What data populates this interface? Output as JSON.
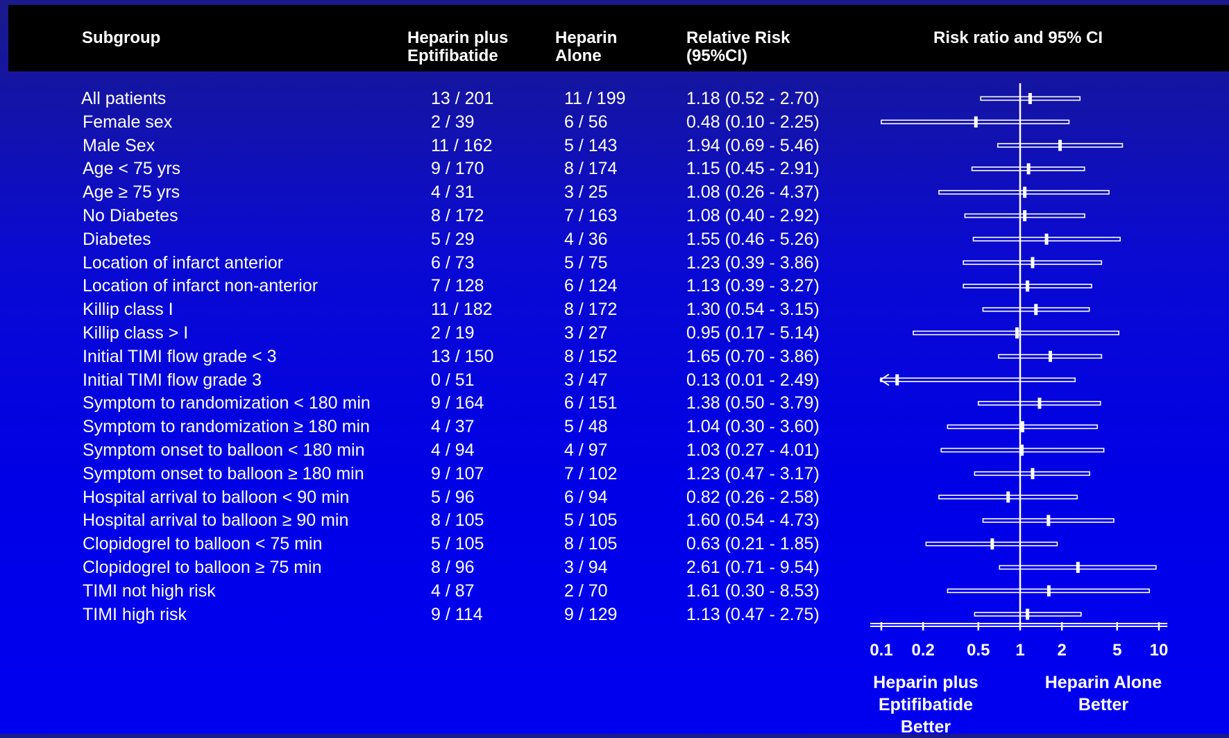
{
  "header": {
    "subgroup": "Subgroup",
    "col_a": "Heparin plus\nEptifibatide",
    "col_b": "Heparin\n Alone",
    "col_rr": "Relative Risk\n  (95%CI)",
    "col_plot": "Risk ratio and 95% CI"
  },
  "rows": [
    {
      "label": "All patients",
      "a": "13 / 201",
      "b": "11 / 199",
      "rr": "1.18 (0.52 - 2.70)"
    },
    {
      "label": "Female sex",
      "a": "2 / 39",
      "b": "6 / 56",
      "rr": "0.48 (0.10 - 2.25)"
    },
    {
      "label": "Male Sex",
      "a": "11 / 162",
      "b": "5 / 143",
      "rr": "1.94 (0.69 - 5.46)"
    },
    {
      "label": "Age < 75 yrs",
      "a": "9 / 170",
      "b": "8 / 174",
      "rr": "1.15 (0.45 - 2.91)"
    },
    {
      "label": "Age ≥ 75 yrs",
      "a": "4 / 31",
      "b": "3 / 25",
      "rr": "1.08 (0.26 - 4.37)"
    },
    {
      "label": "No Diabetes",
      "a": "8 / 172",
      "b": "7 / 163",
      "rr": "1.08 (0.40 - 2.92)"
    },
    {
      "label": "Diabetes",
      "a": "5 / 29",
      "b": "4 / 36",
      "rr": "1.55 (0.46 - 5.26)"
    },
    {
      "label": "Location of infarct anterior",
      "a": "6 / 73",
      "b": "5 / 75",
      "rr": "1.23 (0.39 - 3.86)"
    },
    {
      "label": "Location of infarct non-anterior",
      "a": "7 / 128",
      "b": "6 / 124",
      "rr": "1.13 (0.39 - 3.27)"
    },
    {
      "label": "Killip class I",
      "a": "11 / 182",
      "b": "8 / 172",
      "rr": "1.30 (0.54 - 3.15)"
    },
    {
      "label": "Killip class > I",
      "a": "2 / 19",
      "b": "3 / 27",
      "rr": "0.95 (0.17 - 5.14)"
    },
    {
      "label": "Initial TIMI flow grade < 3",
      "a": "13 / 150",
      "b": "8 / 152",
      "rr": "1.65 (0.70 - 3.86)"
    },
    {
      "label": "Initial TIMI flow grade 3",
      "a": "0 / 51",
      "b": "3 / 47",
      "rr": "0.13 (0.01 - 2.49)"
    },
    {
      "label": "Symptom to randomization < 180 min",
      "a": "9 / 164",
      "b": "6 / 151",
      "rr": "1.38 (0.50 - 3.79)"
    },
    {
      "label": "Symptom to randomization ≥ 180 min",
      "a": "4 / 37",
      "b": "5 / 48",
      "rr": "1.04 (0.30 - 3.60)"
    },
    {
      "label": "Symptom onset to balloon < 180 min",
      "a": "4 / 94",
      "b": "4 / 97",
      "rr": "1.03 (0.27 - 4.01)"
    },
    {
      "label": "Symptom onset to balloon ≥ 180 min",
      "a": "9 / 107",
      "b": "7 / 102",
      "rr": "1.23 (0.47 - 3.17)"
    },
    {
      "label": "Hospital arrival to balloon < 90 min",
      "a": "5 / 96",
      "b": "6 / 94",
      "rr": "0.82 (0.26 - 2.58)"
    },
    {
      "label": "Hospital arrival to balloon ≥ 90 min",
      "a": "8 / 105",
      "b": "5 / 105",
      "rr": "1.60 (0.54 - 4.73)"
    },
    {
      "label": "Clopidogrel  to balloon < 75 min",
      "a": "5 / 105",
      "b": "8 / 105",
      "rr": "0.63 (0.21 - 1.85)"
    },
    {
      "label": "Clopidogrel  to balloon ≥ 75 min",
      "a": "8 / 96",
      "b": "3 / 94",
      "rr": "2.61 (0.71 - 9.54)"
    },
    {
      "label": "TIMI not high risk",
      "a": "4 / 87",
      "b": "2 / 70",
      "rr": "1.61 (0.30 - 8.53)"
    },
    {
      "label": "TIMI high risk",
      "a": "9 / 114",
      "b": "9 / 129",
      "rr": "1.13 (0.47 - 2.75)"
    }
  ],
  "footer": {
    "left": "Heparin plus\nEptifibatide\nBetter",
    "right": "Heparin Alone\nBetter"
  },
  "colors": {
    "background": "#0000e6",
    "header_bg": "#000000",
    "text": "#ffffff"
  },
  "chart_data": {
    "type": "forest",
    "title": "Risk ratio and 95% CI",
    "x_scale": "log",
    "xlim": [
      0.1,
      11
    ],
    "x_ticks": [
      0.1,
      0.2,
      0.5,
      1,
      2,
      5,
      10
    ],
    "x_tick_labels": [
      "0.1",
      "0.2",
      "0.5",
      "1",
      "2",
      "5",
      "10"
    ],
    "reference_line": 1,
    "categories": [
      "All patients",
      "Female sex",
      "Male Sex",
      "Age < 75 yrs",
      "Age ≥ 75 yrs",
      "No Diabetes",
      "Diabetes",
      "Location of infarct anterior",
      "Location of infarct non-anterior",
      "Killip class I",
      "Killip class > I",
      "Initial TIMI flow grade < 3",
      "Initial TIMI flow grade 3",
      "Symptom to randomization < 180 min",
      "Symptom to randomization ≥ 180 min",
      "Symptom onset to balloon < 180 min",
      "Symptom onset to balloon ≥ 180 min",
      "Hospital arrival to balloon < 90 min",
      "Hospital arrival to balloon ≥ 90 min",
      "Clopidogrel  to balloon < 75 min",
      "Clopidogrel  to balloon ≥ 75 min",
      "TIMI not high risk",
      "TIMI high risk"
    ],
    "estimates": [
      1.18,
      0.48,
      1.94,
      1.15,
      1.08,
      1.08,
      1.55,
      1.23,
      1.13,
      1.3,
      0.95,
      1.65,
      0.13,
      1.38,
      1.04,
      1.03,
      1.23,
      0.82,
      1.6,
      0.63,
      2.61,
      1.61,
      1.13
    ],
    "lower": [
      0.52,
      0.1,
      0.69,
      0.45,
      0.26,
      0.4,
      0.46,
      0.39,
      0.39,
      0.54,
      0.17,
      0.7,
      0.01,
      0.5,
      0.3,
      0.27,
      0.47,
      0.26,
      0.54,
      0.21,
      0.71,
      0.3,
      0.47
    ],
    "upper": [
      2.7,
      2.25,
      5.46,
      2.91,
      4.37,
      2.92,
      5.26,
      3.86,
      3.27,
      3.15,
      5.14,
      3.86,
      2.49,
      3.79,
      3.6,
      4.01,
      3.17,
      2.58,
      4.73,
      1.85,
      9.54,
      8.53,
      2.75
    ],
    "truncated_lower_arrow": [
      12
    ]
  }
}
